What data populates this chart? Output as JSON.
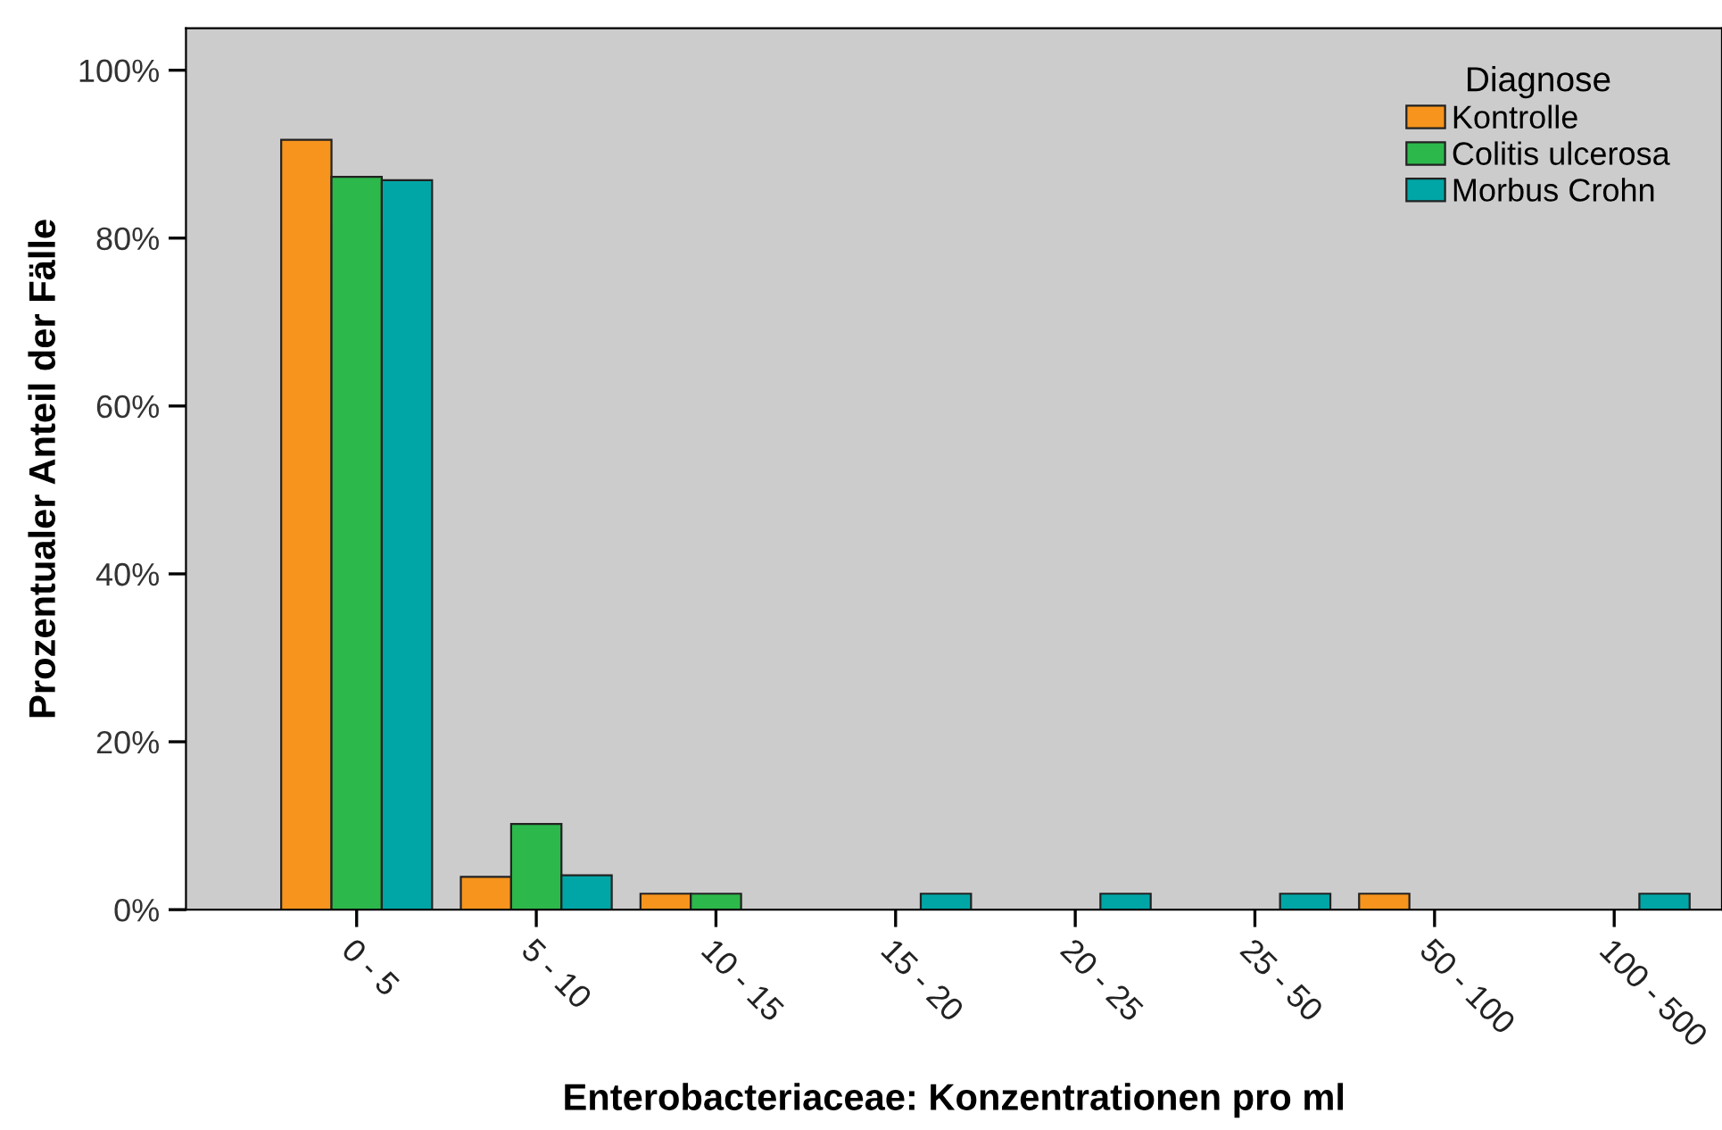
{
  "chart_data": {
    "type": "bar",
    "xlabel": "Enterobacteriaceae: Konzentrationen pro ml",
    "ylabel": "Prozentualer Anteil der Fälle",
    "legend_title": "Diagnose",
    "categories": [
      "0 - 5",
      "5 - 10",
      "10 - 15",
      "15 - 20",
      "20 - 25",
      "25 - 50",
      "50 - 100",
      "100 - 500"
    ],
    "series": [
      {
        "name": "Kontrolle",
        "color": "#f7941d",
        "values": [
          91.7,
          3.9,
          1.9,
          0,
          0,
          0,
          1.9,
          0
        ]
      },
      {
        "name": "Colitis ulcerosa",
        "color": "#2db84b",
        "values": [
          87.3,
          10.2,
          1.9,
          0,
          0,
          0,
          0,
          0
        ]
      },
      {
        "name": "Morbus Crohn",
        "color": "#00a6a6",
        "values": [
          86.9,
          4.1,
          0,
          1.9,
          1.9,
          1.9,
          0,
          1.9
        ]
      }
    ],
    "ylim": [
      0,
      105
    ],
    "yticks": [
      {
        "value": 0,
        "label": "0%"
      },
      {
        "value": 20,
        "label": "20%"
      },
      {
        "value": 40,
        "label": "40%"
      },
      {
        "value": 60,
        "label": "60%"
      },
      {
        "value": 80,
        "label": "80%"
      },
      {
        "value": 100,
        "label": "100%"
      }
    ],
    "grid": false,
    "legend": "top right"
  }
}
